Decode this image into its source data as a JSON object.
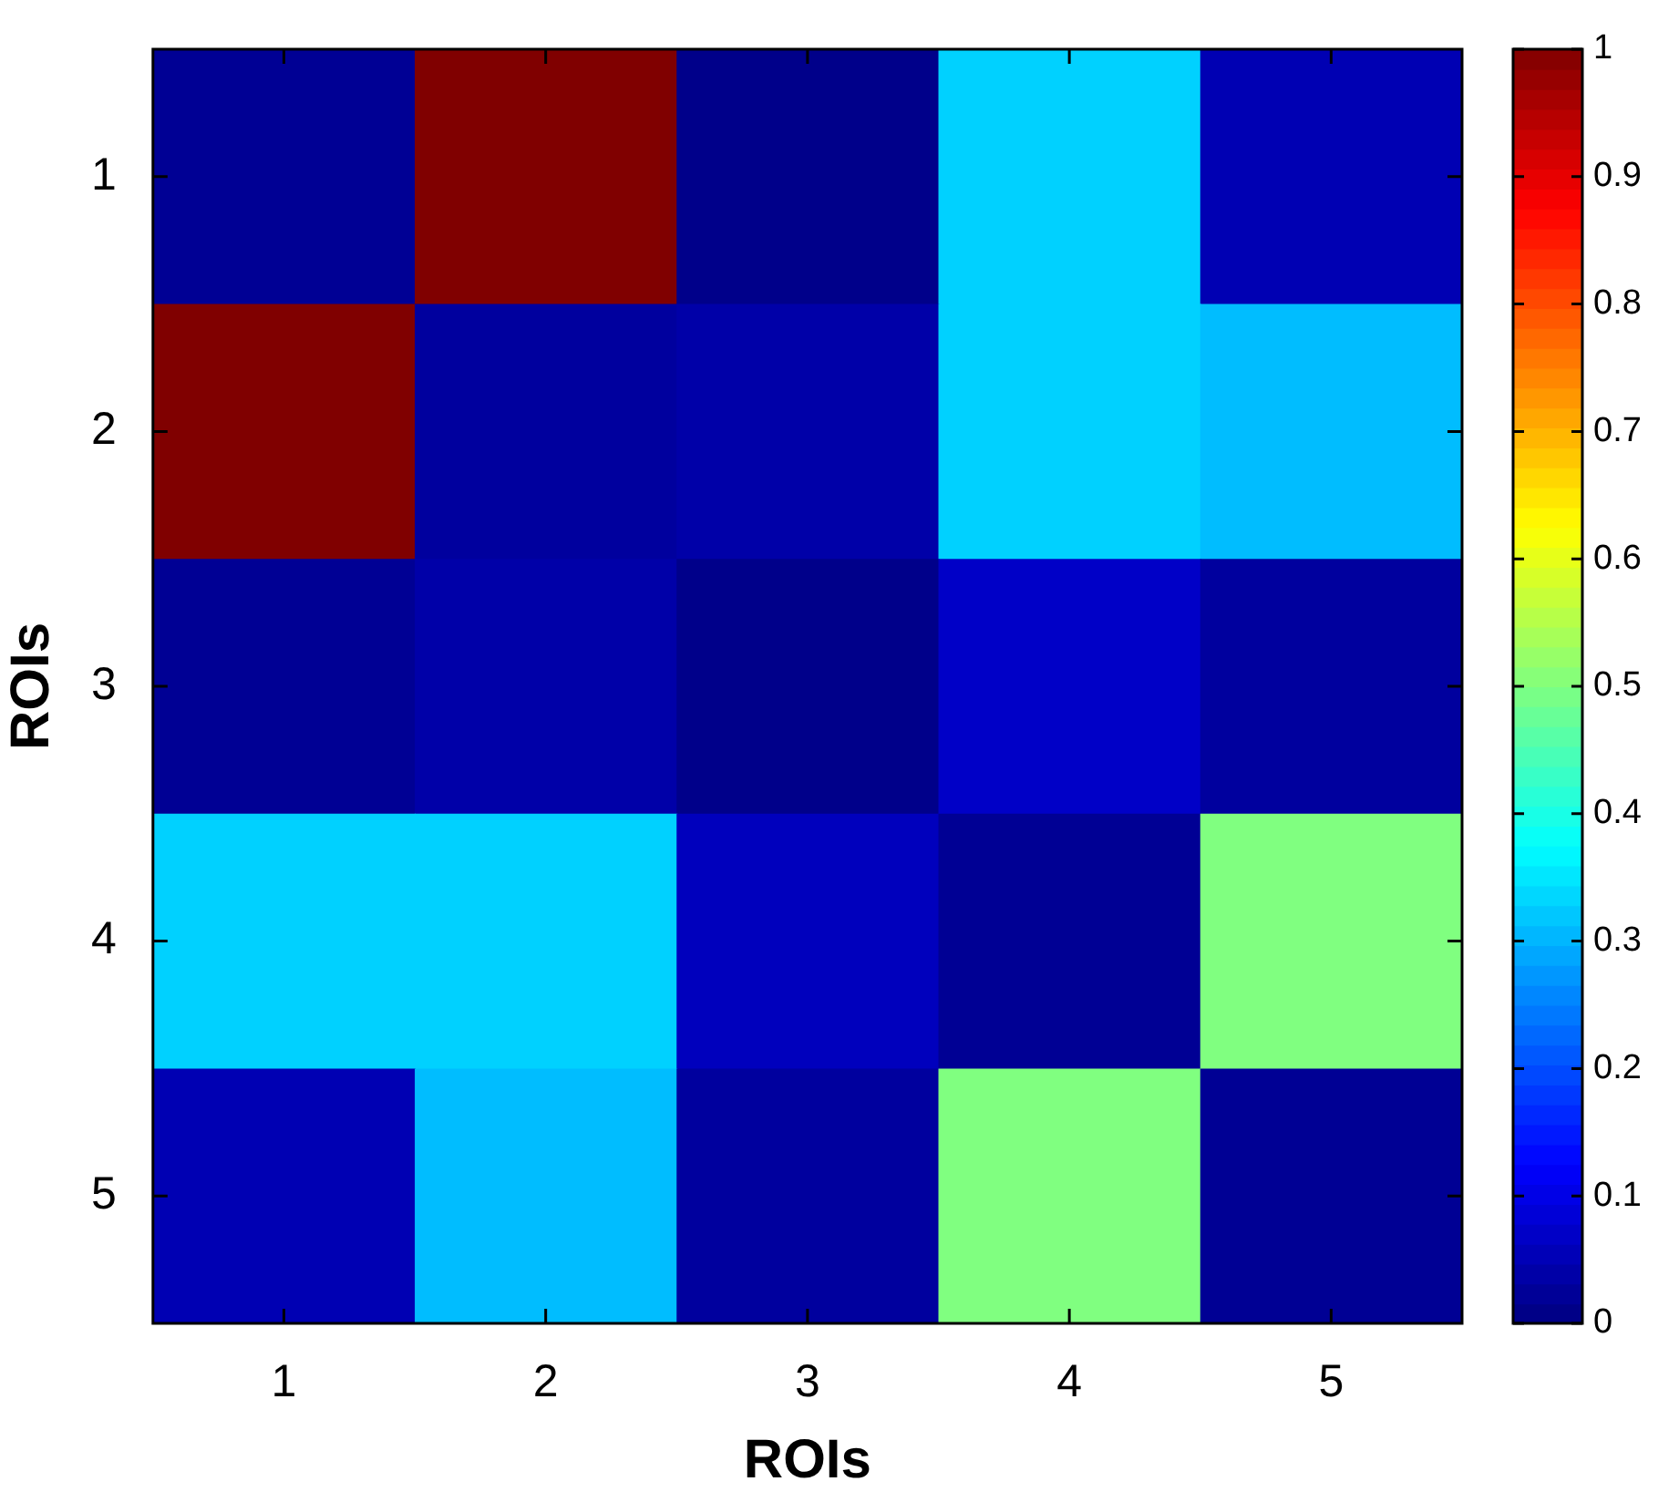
{
  "chart_data": {
    "type": "heatmap",
    "xlabel": "ROIs",
    "ylabel": "ROIs",
    "categories": [
      "1",
      "2",
      "3",
      "4",
      "5"
    ],
    "y_categories": [
      "1",
      "2",
      "3",
      "4",
      "5"
    ],
    "cells": [
      [
        0.02,
        1,
        0.01,
        0.33,
        0.05
      ],
      [
        1,
        0.03,
        0.04,
        0.33,
        0.31
      ],
      [
        0.02,
        0.04,
        0.01,
        0.07,
        0.03
      ],
      [
        0.33,
        0.33,
        0.06,
        0.02,
        0.5
      ],
      [
        0.05,
        0.31,
        0.03,
        0.5,
        0.02
      ]
    ],
    "clim": [
      0,
      1
    ],
    "cticks": [
      0,
      0.1,
      0.2,
      0.3,
      0.4,
      0.5,
      0.6,
      0.7,
      0.8,
      0.9,
      1
    ]
  }
}
